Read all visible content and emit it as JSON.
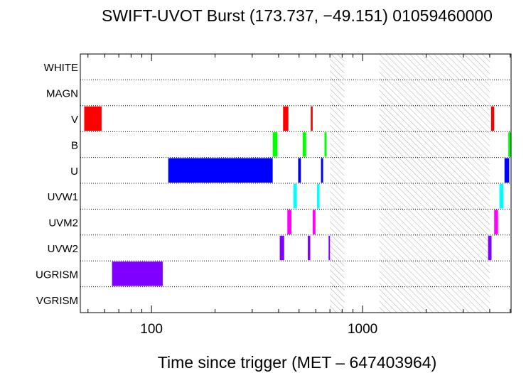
{
  "chart_data": {
    "type": "bar",
    "title": "SWIFT-UVOT Burst (173.737, −49.151) 01059460000",
    "xlabel": "Time since trigger (MET – 647403964)",
    "ylabel": "",
    "x_scale": "log",
    "xlim": [
      46,
      5050
    ],
    "x_ticks": [
      {
        "value": 100,
        "label": "100"
      },
      {
        "value": 1000,
        "label": "1000"
      }
    ],
    "grid": "dotted horizontal lines between filters",
    "categories": [
      "WHITE",
      "MAGN",
      "V",
      "B",
      "U",
      "UVW1",
      "UVM2",
      "UVW2",
      "UGRISM",
      "VGRISM"
    ],
    "hatched_intervals": [
      {
        "start": 700,
        "end": 820
      },
      {
        "start": 1200,
        "end": 4000
      }
    ],
    "series": [
      {
        "filter": "V",
        "color": "#ff0000",
        "intervals": [
          [
            48,
            58
          ],
          [
            420,
            445
          ],
          [
            568,
            580
          ],
          [
            4060,
            4200
          ]
        ]
      },
      {
        "filter": "B",
        "color": "#00ff00",
        "intervals": [
          [
            375,
            395
          ],
          [
            520,
            540
          ],
          [
            660,
            675
          ],
          [
            4900,
            5050
          ]
        ]
      },
      {
        "filter": "U",
        "color": "#0000ff",
        "intervals": [
          [
            120,
            375
          ],
          [
            495,
            510
          ],
          [
            635,
            650
          ],
          [
            4700,
            4950
          ]
        ]
      },
      {
        "filter": "UVW1",
        "color": "#00ffff",
        "intervals": [
          [
            470,
            488
          ],
          [
            608,
            625
          ],
          [
            4450,
            4650
          ]
        ]
      },
      {
        "filter": "UVM2",
        "color": "#ff00ff",
        "intervals": [
          [
            440,
            460
          ],
          [
            580,
            598
          ],
          [
            4200,
            4380
          ]
        ]
      },
      {
        "filter": "UVW2",
        "color": "#8000ff",
        "intervals": [
          [
            405,
            425
          ],
          [
            550,
            565
          ],
          [
            690,
            700
          ],
          [
            3930,
            4080
          ]
        ]
      },
      {
        "filter": "UGRISM",
        "color": "#8000ff",
        "intervals": [
          [
            65,
            113
          ]
        ]
      }
    ]
  }
}
